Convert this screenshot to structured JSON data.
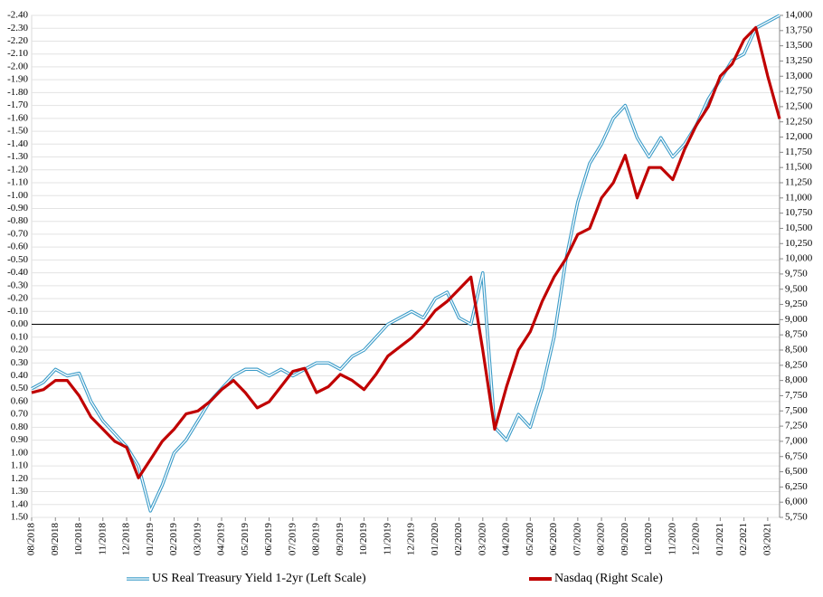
{
  "chart_data": {
    "type": "line",
    "categories": [
      "08/2018",
      null,
      "09/2018",
      null,
      "10/2018",
      null,
      "11/2018",
      null,
      "12/2018",
      null,
      "01/2019",
      null,
      "02/2019",
      null,
      "03/2019",
      null,
      "04/2019",
      null,
      "05/2019",
      null,
      "06/2019",
      null,
      "07/2019",
      null,
      "08/2019",
      null,
      "09/2019",
      null,
      "10/2019",
      null,
      "11/2019",
      null,
      "12/2019",
      null,
      "01/2020",
      null,
      "02/2020",
      null,
      "03/2020",
      null,
      "04/2020",
      null,
      "05/2020",
      null,
      "06/2020",
      null,
      "07/2020",
      null,
      "08/2020",
      null,
      "09/2020",
      null,
      "10/2020",
      null,
      "11/2020",
      null,
      "12/2020",
      null,
      "01/2021",
      null,
      "02/2021",
      null,
      "03/2021",
      null
    ],
    "series": [
      {
        "name": "US Real Treasury Yield 1-2yr (Left Scale)",
        "color": "#3a9bc8",
        "axis": "y",
        "values": [
          0.5,
          0.45,
          0.35,
          0.4,
          0.38,
          0.6,
          0.75,
          0.85,
          0.95,
          1.1,
          1.45,
          1.25,
          1.0,
          0.9,
          0.75,
          0.6,
          0.5,
          0.4,
          0.35,
          0.35,
          0.4,
          0.35,
          0.4,
          0.35,
          0.3,
          0.3,
          0.35,
          0.25,
          0.2,
          0.1,
          0.0,
          -0.05,
          -0.1,
          -0.05,
          -0.2,
          -0.25,
          -0.05,
          0.0,
          -0.4,
          0.8,
          0.9,
          0.7,
          0.8,
          0.5,
          0.1,
          -0.5,
          -0.95,
          -1.25,
          -1.4,
          -1.6,
          -1.7,
          -1.45,
          -1.3,
          -1.45,
          -1.3,
          -1.4,
          -1.55,
          -1.75,
          -1.9,
          -2.05,
          -2.1,
          -2.3,
          -2.35,
          -2.4
        ]
      },
      {
        "name": "Nasdaq (Right Scale)",
        "color": "#c00000",
        "axis": "y2",
        "values": [
          7800,
          7850,
          8000,
          8000,
          7750,
          7400,
          7200,
          7000,
          6900,
          6400,
          6700,
          7000,
          7200,
          7450,
          7500,
          7650,
          7850,
          8000,
          7800,
          7550,
          7650,
          7900,
          8150,
          8200,
          7800,
          7900,
          8100,
          8000,
          7850,
          8100,
          8400,
          8550,
          8700,
          8900,
          9150,
          9300,
          9500,
          9700,
          8500,
          7200,
          7900,
          8500,
          8800,
          9300,
          9700,
          10000,
          10400,
          10500,
          11000,
          11250,
          11700,
          11000,
          11500,
          11500,
          11300,
          11800,
          12200,
          12500,
          13000,
          13200,
          13600,
          13800,
          13000,
          12300
        ]
      }
    ],
    "ylim": [
      1.5,
      -2.4
    ],
    "yticks": [
      {
        "value": -2.4,
        "label": "-2.40"
      },
      {
        "value": -2.3,
        "label": "-2.30"
      },
      {
        "value": -2.2,
        "label": "-2.20"
      },
      {
        "value": -2.1,
        "label": "-2.10"
      },
      {
        "value": -2.0,
        "label": "-2.00"
      },
      {
        "value": -1.9,
        "label": "-1.90"
      },
      {
        "value": -1.8,
        "label": "-1.80"
      },
      {
        "value": -1.7,
        "label": "-1.70"
      },
      {
        "value": -1.6,
        "label": "-1.60"
      },
      {
        "value": -1.5,
        "label": "-1.50"
      },
      {
        "value": -1.4,
        "label": "-1.40"
      },
      {
        "value": -1.3,
        "label": "-1.30"
      },
      {
        "value": -1.2,
        "label": "-1.20"
      },
      {
        "value": -1.1,
        "label": "-1.10"
      },
      {
        "value": -1.0,
        "label": "-1.00"
      },
      {
        "value": -0.9,
        "label": "-0.90"
      },
      {
        "value": -0.8,
        "label": "-0.80"
      },
      {
        "value": -0.7,
        "label": "-0.70"
      },
      {
        "value": -0.6,
        "label": "-0.60"
      },
      {
        "value": -0.5,
        "label": "-0.50"
      },
      {
        "value": -0.4,
        "label": "-0.40"
      },
      {
        "value": -0.3,
        "label": "-0.30"
      },
      {
        "value": -0.2,
        "label": "-0.20"
      },
      {
        "value": -0.1,
        "label": "-0.10"
      },
      {
        "value": 0,
        "label": "0.00"
      },
      {
        "value": 0.1,
        "label": "0.10"
      },
      {
        "value": 0.2,
        "label": "0.20"
      },
      {
        "value": 0.3,
        "label": "0.30"
      },
      {
        "value": 0.4,
        "label": "0.40"
      },
      {
        "value": 0.5,
        "label": "0.50"
      },
      {
        "value": 0.6,
        "label": "0.60"
      },
      {
        "value": 0.7,
        "label": "0.70"
      },
      {
        "value": 0.8,
        "label": "0.80"
      },
      {
        "value": 0.9,
        "label": "0.90"
      },
      {
        "value": 1.0,
        "label": "1.00"
      },
      {
        "value": 1.1,
        "label": "1.10"
      },
      {
        "value": 1.2,
        "label": "1.20"
      },
      {
        "value": 1.3,
        "label": "1.30"
      },
      {
        "value": 1.4,
        "label": "1.40"
      },
      {
        "value": 1.5,
        "label": "1.50"
      }
    ],
    "y2lim": [
      5750,
      14000
    ],
    "y2ticks": [
      {
        "value": 5750,
        "label": "5,750"
      },
      {
        "value": 6000,
        "label": "6,000"
      },
      {
        "value": 6250,
        "label": "6,250"
      },
      {
        "value": 6500,
        "label": "6,500"
      },
      {
        "value": 6750,
        "label": "6,750"
      },
      {
        "value": 7000,
        "label": "7,000"
      },
      {
        "value": 7250,
        "label": "7,250"
      },
      {
        "value": 7500,
        "label": "7,500"
      },
      {
        "value": 7750,
        "label": "7,750"
      },
      {
        "value": 8000,
        "label": "8,000"
      },
      {
        "value": 8250,
        "label": "8,250"
      },
      {
        "value": 8500,
        "label": "8,500"
      },
      {
        "value": 8750,
        "label": "8,750"
      },
      {
        "value": 9000,
        "label": "9,000"
      },
      {
        "value": 9250,
        "label": "9,250"
      },
      {
        "value": 9500,
        "label": "9,500"
      },
      {
        "value": 9750,
        "label": "9,750"
      },
      {
        "value": 10000,
        "label": "10,000"
      },
      {
        "value": 10250,
        "label": "10,250"
      },
      {
        "value": 10500,
        "label": "10,500"
      },
      {
        "value": 10750,
        "label": "10,750"
      },
      {
        "value": 11000,
        "label": "11,000"
      },
      {
        "value": 11250,
        "label": "11,250"
      },
      {
        "value": 11500,
        "label": "11,500"
      },
      {
        "value": 11750,
        "label": "11,750"
      },
      {
        "value": 12000,
        "label": "12,000"
      },
      {
        "value": 12250,
        "label": "12,250"
      },
      {
        "value": 12500,
        "label": "12,500"
      },
      {
        "value": 12750,
        "label": "12,750"
      },
      {
        "value": 13000,
        "label": "13,000"
      },
      {
        "value": 13250,
        "label": "13,250"
      },
      {
        "value": 13500,
        "label": "13,500"
      },
      {
        "value": 13750,
        "label": "13,750"
      },
      {
        "value": 14000,
        "label": "14,000"
      }
    ],
    "grid": true,
    "legend": "bottom"
  }
}
